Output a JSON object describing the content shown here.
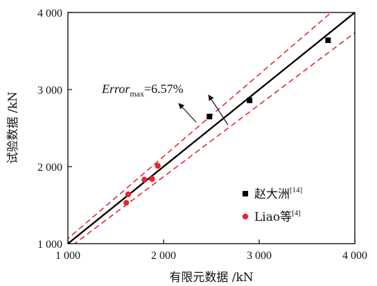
{
  "chart_data": {
    "type": "scatter",
    "xlabel": "有限元数据 /kN",
    "ylabel": "试验数据 /kN",
    "xlim": [
      1000,
      4000
    ],
    "ylim": [
      1000,
      4000
    ],
    "xticks": [
      1000,
      2000,
      3000,
      4000
    ],
    "yticks": [
      1000,
      2000,
      3000,
      4000
    ],
    "xtick_labels": [
      "1 000",
      "2 000",
      "3 000",
      "4 000"
    ],
    "ytick_labels": [
      "1 000",
      "2 000",
      "3 000",
      "4 000"
    ],
    "grid": false,
    "legend_position": "bottom-right",
    "series": [
      {
        "name": "赵大洲",
        "ref": "[14]",
        "marker": "square",
        "color": "#000000",
        "points": [
          {
            "x": 2480,
            "y": 2650
          },
          {
            "x": 2900,
            "y": 2860
          },
          {
            "x": 3720,
            "y": 3640
          }
        ]
      },
      {
        "name": "Liao等",
        "ref": "[4]",
        "marker": "circle",
        "color": "#e8262d",
        "points": [
          {
            "x": 1610,
            "y": 1530
          },
          {
            "x": 1630,
            "y": 1640
          },
          {
            "x": 1800,
            "y": 1830
          },
          {
            "x": 1880,
            "y": 1840
          },
          {
            "x": 1940,
            "y": 2010
          }
        ]
      }
    ],
    "reference_lines": [
      {
        "kind": "y=x",
        "factor": 1.0,
        "style": "solid",
        "color": "#000000"
      },
      {
        "kind": "upper-bound",
        "factor": 1.0657,
        "style": "dashed",
        "color": "#e8262d"
      },
      {
        "kind": "lower-bound",
        "factor": 0.9343,
        "style": "dashed",
        "color": "#e8262d"
      }
    ],
    "annotation": {
      "text_main": "Error",
      "text_sub": "max",
      "text_value": "=6.57%"
    }
  }
}
